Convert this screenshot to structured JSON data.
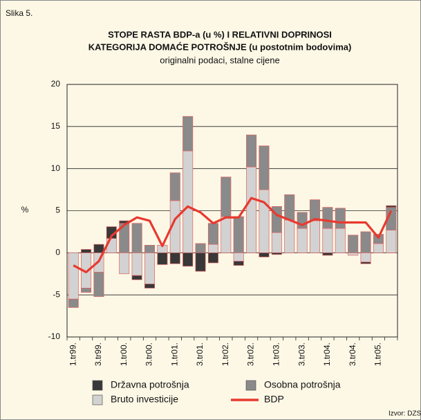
{
  "chart_data": {
    "type": "bar",
    "stacked": true,
    "figure_label": "Slika 5.",
    "title": [
      "STOPE RASTA BDP-a (u %) I RELATIVNI DOPRINOSI",
      "KATEGORIJA DOMAĆE POTROŠNJE (u postotnim bodovima)"
    ],
    "subtitle": "originalni podaci, stalne cijene",
    "ylabel": "%",
    "source": "Izvor: DZS",
    "categories": [
      "1.tr99.",
      null,
      "3.tr99.",
      null,
      "1.tr00.",
      null,
      "3.tr00.",
      null,
      "1.tr01.",
      null,
      "3.tr01.",
      null,
      "1.tr02.",
      null,
      "3.tr02.",
      null,
      "1.tr03.",
      null,
      "3.tr03.",
      null,
      "1.tr04.",
      null,
      "3.tr04.",
      null,
      "1.tr05.",
      null
    ],
    "series": [
      {
        "name": "Bruto investicije",
        "type": "bar",
        "color": "#d2d2d2",
        "values": [
          -5.5,
          -4.2,
          -2.3,
          1.7,
          -2.5,
          -2.7,
          -3.7,
          0.9,
          6.2,
          12.1,
          0,
          1,
          4.3,
          -1,
          10.2,
          7.5,
          2.4,
          3.9,
          2.9,
          3.8,
          2.9,
          2.9,
          -0.3,
          -1.1,
          1.1,
          2.7
        ]
      },
      {
        "name": "Osobna potrošnja",
        "type": "bar",
        "color": "#8a8a8a",
        "values": [
          -1,
          -0.5,
          -2.9,
          0,
          3.5,
          3.5,
          0.9,
          0,
          3.3,
          4.1,
          1.1,
          2.5,
          4.7,
          4.3,
          3.8,
          5.2,
          3.1,
          3,
          1.9,
          2.5,
          2.5,
          2.4,
          2.1,
          2.5,
          1.1,
          2.7
        ]
      },
      {
        "name": "Državna potrošnja",
        "type": "bar",
        "color": "#383838",
        "values": [
          0,
          0.4,
          1,
          1.4,
          0.3,
          -0.5,
          -0.5,
          -1.4,
          -1.3,
          -1.6,
          -2.2,
          -1.2,
          0,
          -0.5,
          0,
          -0.5,
          -0.2,
          0,
          0,
          0,
          -0.3,
          0,
          0,
          -0.2,
          0,
          0.2
        ]
      },
      {
        "name": "BDP",
        "type": "line",
        "color": "#e8392f",
        "values": [
          -1.5,
          -2.3,
          -1,
          2,
          3.3,
          4.2,
          3.8,
          0.8,
          4,
          5.5,
          4.8,
          3.5,
          4.2,
          4.2,
          6.5,
          6,
          4.5,
          3.9,
          3.3,
          4,
          3.8,
          3.6,
          3.6,
          3.6,
          1.8,
          5
        ]
      }
    ],
    "ylim": [
      -10,
      20
    ],
    "yticks": [
      -10,
      -5,
      0,
      5,
      10,
      15,
      20
    ],
    "grid": true,
    "bar_edge_color": "#e06060"
  }
}
